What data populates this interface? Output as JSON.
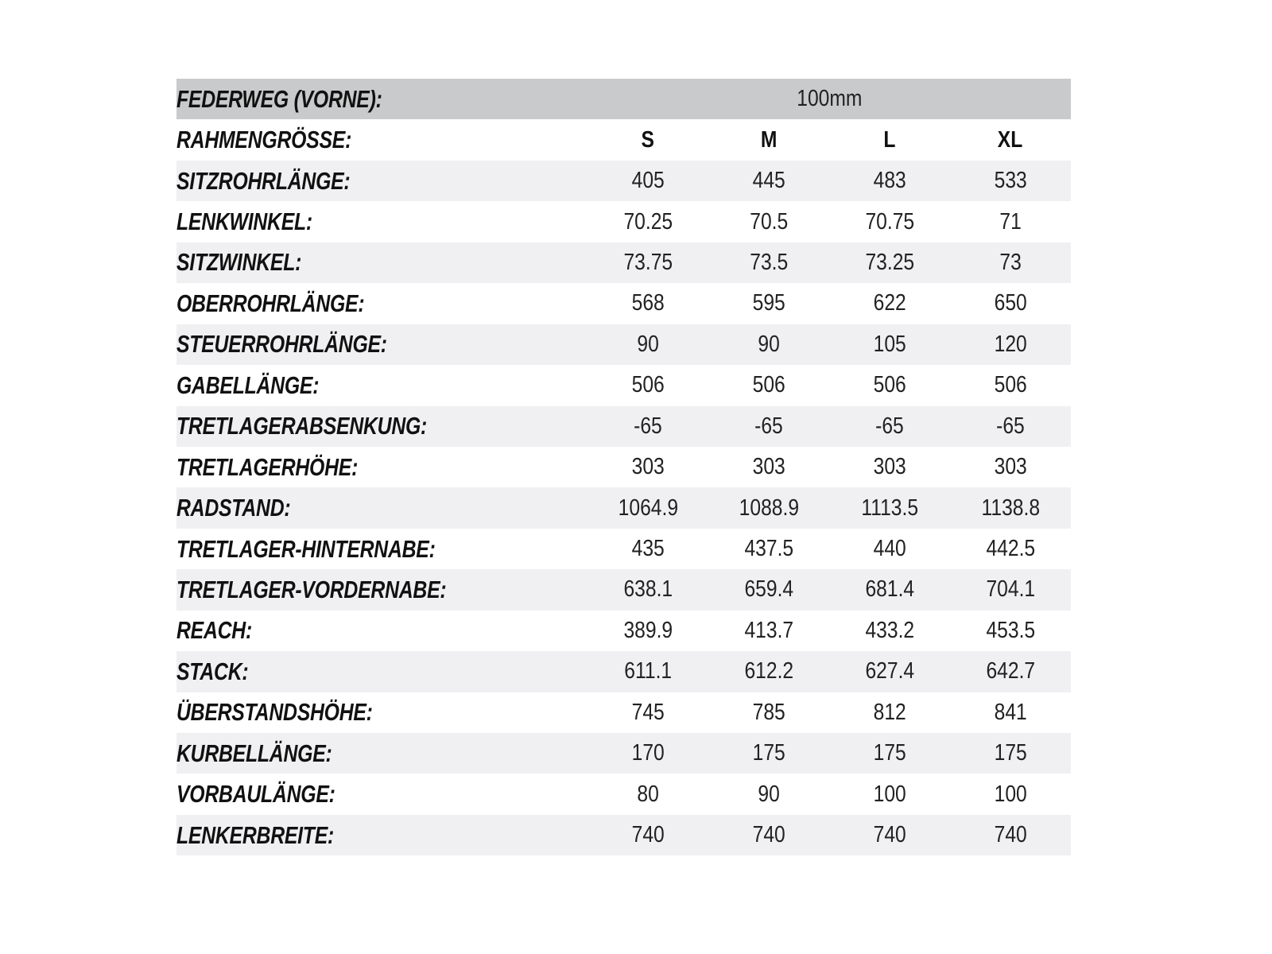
{
  "header": {
    "label": "FEDERWEG (VORNE):",
    "value": "100mm"
  },
  "sizes": {
    "label": "RAHMENGRÖSSE:",
    "values": [
      "S",
      "M",
      "L",
      "XL"
    ]
  },
  "rows": [
    {
      "label": "SITZROHRLÄNGE:",
      "values": [
        "405",
        "445",
        "483",
        "533"
      ]
    },
    {
      "label": "LENKWINKEL:",
      "values": [
        "70.25",
        "70.5",
        "70.75",
        "71"
      ]
    },
    {
      "label": "SITZWINKEL:",
      "values": [
        "73.75",
        "73.5",
        "73.25",
        "73"
      ]
    },
    {
      "label": "OBERROHRLÄNGE:",
      "values": [
        "568",
        "595",
        "622",
        "650"
      ]
    },
    {
      "label": "STEUERROHRLÄNGE:",
      "values": [
        "90",
        "90",
        "105",
        "120"
      ]
    },
    {
      "label": "GABELLÄNGE:",
      "values": [
        "506",
        "506",
        "506",
        "506"
      ]
    },
    {
      "label": "TRETLAGERABSENKUNG:",
      "values": [
        "-65",
        "-65",
        "-65",
        "-65"
      ]
    },
    {
      "label": "TRETLAGERHÖHE:",
      "values": [
        "303",
        "303",
        "303",
        "303"
      ]
    },
    {
      "label": "RADSTAND:",
      "values": [
        "1064.9",
        "1088.9",
        "1113.5",
        "1138.8"
      ]
    },
    {
      "label": "TRETLAGER-HINTERNABE:",
      "values": [
        "435",
        "437.5",
        "440",
        "442.5"
      ]
    },
    {
      "label": "TRETLAGER-VORDERNABE:",
      "values": [
        "638.1",
        "659.4",
        "681.4",
        "704.1"
      ]
    },
    {
      "label": "REACH:",
      "values": [
        "389.9",
        "413.7",
        "433.2",
        "453.5"
      ]
    },
    {
      "label": "STACK:",
      "values": [
        "611.1",
        "612.2",
        "627.4",
        "642.7"
      ]
    },
    {
      "label": "ÜBERSTANDSHÖHE:",
      "values": [
        "745",
        "785",
        "812",
        "841"
      ]
    },
    {
      "label": "KURBELLÄNGE:",
      "values": [
        "170",
        "175",
        "175",
        "175"
      ]
    },
    {
      "label": "VORBAULÄNGE:",
      "values": [
        "80",
        "90",
        "100",
        "100"
      ]
    },
    {
      "label": "LENKERBREITE:",
      "values": [
        "740",
        "740",
        "740",
        "740"
      ]
    }
  ],
  "colors": {
    "header_bg": "#c9cacb",
    "alt_row_bg": "#f0f0f2"
  }
}
